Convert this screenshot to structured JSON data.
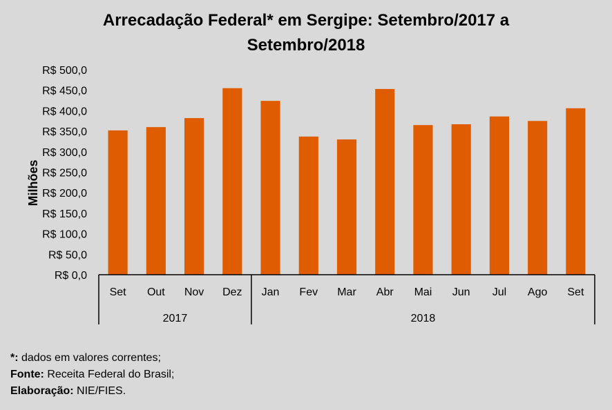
{
  "chart_data": {
    "type": "bar",
    "title_lines": [
      "Arrecadação Federal* em Sergipe: Setembro/2017 a",
      "Setembro/2018"
    ],
    "title": "Arrecadação Federal* em Sergipe: Setembro/2017 a Setembro/2018",
    "xlabel": "",
    "ylabel": "Milhões",
    "ylim": [
      0,
      500
    ],
    "yticks": [
      0,
      50,
      100,
      150,
      200,
      250,
      300,
      350,
      400,
      450,
      500
    ],
    "ytick_labels": [
      "R$ 0,0",
      "R$ 50,0",
      "R$ 100,0",
      "R$ 150,0",
      "R$ 200,0",
      "R$ 250,0",
      "R$ 300,0",
      "R$ 350,0",
      "R$ 400,0",
      "R$ 450,0",
      "R$ 500,0"
    ],
    "categories": [
      "Set",
      "Out",
      "Nov",
      "Dez",
      "Jan",
      "Fev",
      "Mar",
      "Abr",
      "Mai",
      "Jun",
      "Jul",
      "Ago",
      "Set"
    ],
    "groups": [
      {
        "label": "2017",
        "count": 4
      },
      {
        "label": "2018",
        "count": 9
      }
    ],
    "series": [
      {
        "name": "Arrecadação Federal",
        "color": "#e05c00",
        "values": [
          352,
          360,
          382,
          455,
          424,
          337,
          330,
          453,
          365,
          367,
          386,
          375,
          406
        ]
      }
    ],
    "grid": false,
    "legend": "none"
  },
  "footer": {
    "note_key": "*:",
    "note_text": " dados em valores correntes;",
    "source_key": "Fonte:",
    "source_text": " Receita Federal do Brasil;",
    "credit_key": "Elaboração:",
    "credit_text": " NIE/FIES."
  },
  "colors": {
    "background": "#d9d9d9",
    "bar": "#e05c00",
    "axis": "#000000"
  }
}
